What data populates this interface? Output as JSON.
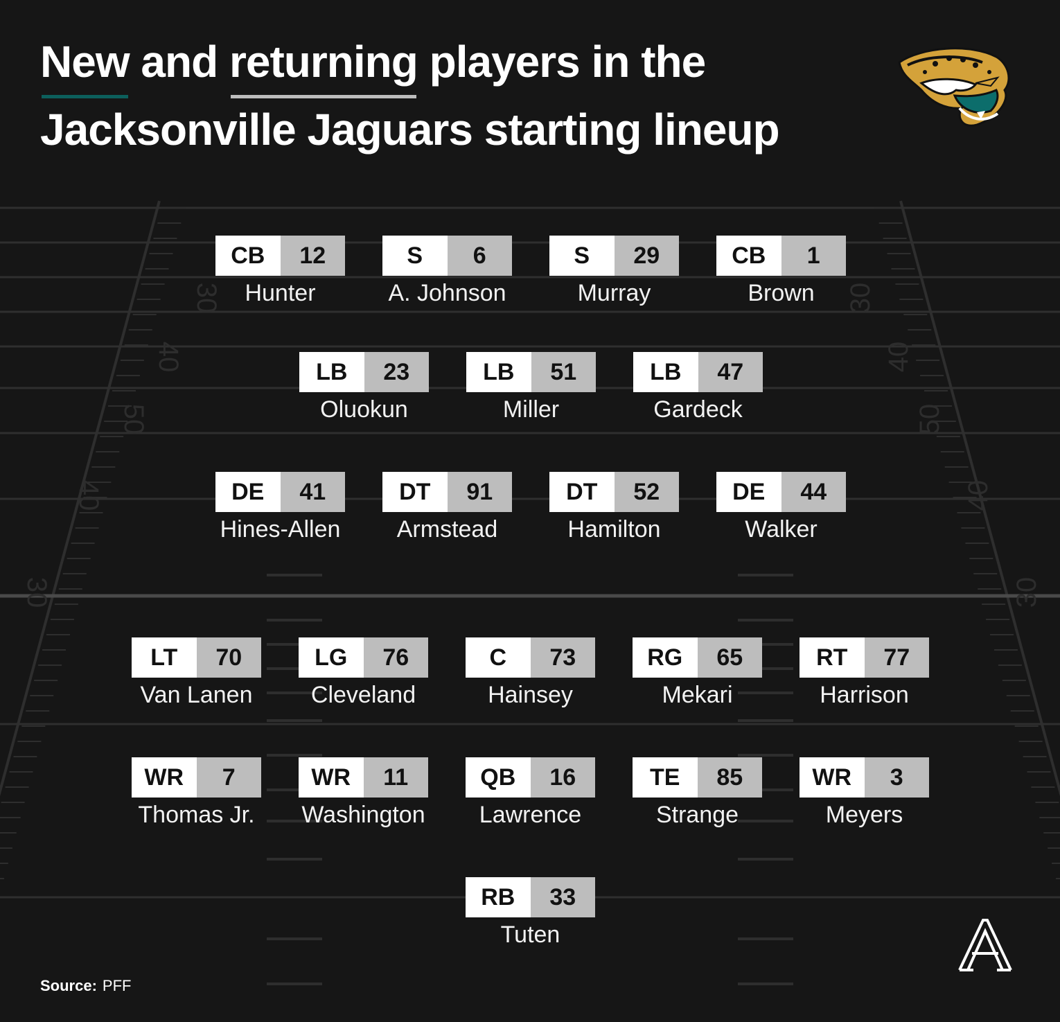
{
  "title": {
    "word_new": "New",
    "word_and": "and",
    "word_returning": "returning",
    "line1_rest": "players in the",
    "line2": "Jacksonville Jaguars starting lineup"
  },
  "legend_colors": {
    "new": "#0c5f5c",
    "returning": "#bdbdbd"
  },
  "logo": {
    "icon": "jaguar-head-logo"
  },
  "field": {
    "yard_numbers": [
      "30",
      "40",
      "50",
      "40",
      "30"
    ]
  },
  "defense": {
    "secondary": [
      {
        "pos": "CB",
        "num": "12",
        "name": "Hunter"
      },
      {
        "pos": "S",
        "num": "6",
        "name": "A. Johnson"
      },
      {
        "pos": "S",
        "num": "29",
        "name": "Murray"
      },
      {
        "pos": "CB",
        "num": "1",
        "name": "Brown"
      }
    ],
    "linebackers": [
      {
        "pos": "LB",
        "num": "23",
        "name": "Oluokun"
      },
      {
        "pos": "LB",
        "num": "51",
        "name": "Miller"
      },
      {
        "pos": "LB",
        "num": "47",
        "name": "Gardeck"
      }
    ],
    "line": [
      {
        "pos": "DE",
        "num": "41",
        "name": "Hines-Allen"
      },
      {
        "pos": "DT",
        "num": "91",
        "name": "Armstead"
      },
      {
        "pos": "DT",
        "num": "52",
        "name": "Hamilton"
      },
      {
        "pos": "DE",
        "num": "44",
        "name": "Walker"
      }
    ]
  },
  "offense": {
    "line": [
      {
        "pos": "LT",
        "num": "70",
        "name": "Van Lanen"
      },
      {
        "pos": "LG",
        "num": "76",
        "name": "Cleveland"
      },
      {
        "pos": "C",
        "num": "73",
        "name": "Hainsey"
      },
      {
        "pos": "RG",
        "num": "65",
        "name": "Mekari"
      },
      {
        "pos": "RT",
        "num": "77",
        "name": "Harrison"
      }
    ],
    "skill": [
      {
        "pos": "WR",
        "num": "7",
        "name": "Thomas Jr."
      },
      {
        "pos": "WR",
        "num": "11",
        "name": "Washington"
      },
      {
        "pos": "QB",
        "num": "16",
        "name": "Lawrence"
      },
      {
        "pos": "TE",
        "num": "85",
        "name": "Strange"
      },
      {
        "pos": "WR",
        "num": "3",
        "name": "Meyers"
      }
    ],
    "backfield": [
      {
        "pos": "RB",
        "num": "33",
        "name": "Tuten"
      }
    ]
  },
  "source": {
    "label": "Source:",
    "value": "PFF"
  },
  "brand": {
    "icon": "the-athletic-logo"
  }
}
